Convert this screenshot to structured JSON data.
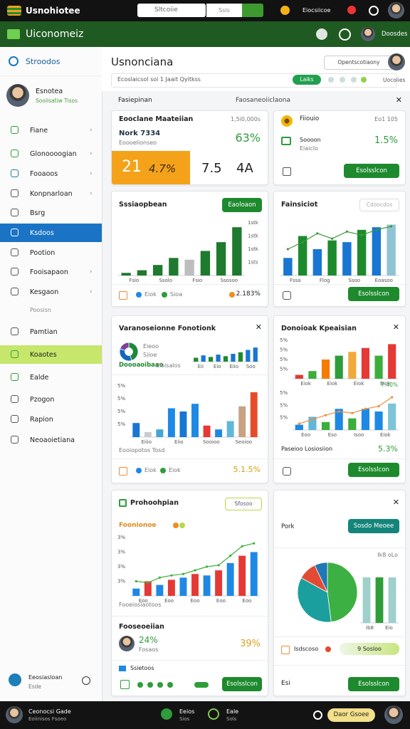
{
  "topbar": {
    "brand": "Usnohiotee",
    "search": "Sltcoiie",
    "search_option": "Ssis",
    "user": "Eiocsiicoe"
  },
  "navbar": {
    "title": "Uiconomeiz",
    "user": "Doosdes"
  },
  "sidebar": {
    "section": "Stroodos",
    "profile": {
      "name": "Esnotea",
      "role": "Sooiisatiw Tisos"
    },
    "items": [
      "Fiane",
      "Glonoooogian",
      "Fooaoos",
      "Konpnarloan",
      "Bsrg",
      "Ksdoos",
      "Pootion",
      "Fooisapaon",
      "Kesgaon",
      "Poosisn",
      "Pamtian",
      "Koaotes",
      "Ealde",
      "Pzogon",
      "Rapion",
      "Neoaoietiana"
    ],
    "footer": {
      "name": "Eeosiasloan",
      "sub": "Esde"
    }
  },
  "header": {
    "title": "Usnonciana",
    "button": "Opentscotiaony",
    "filter": "Ecoslaicsol soi 1 Jaait Qyitkss",
    "pill": "Laiks",
    "more": "Uocoiies"
  },
  "section": {
    "left": "Fasiepinan",
    "right": "Faosaneoiiclaona"
  },
  "cards": [
    {
      "title": "Eooclane Maateiian",
      "meta": "1,5i0,000s",
      "label": "Nork 7334",
      "sub": "Eoooelionseo",
      "value": "63%",
      "tiles": [
        "21",
        "4.7%",
        "7.5",
        "4A"
      ]
    },
    {
      "title": "Fiiouio",
      "meta": "Eo1 105",
      "value": "1.5%",
      "label": "Soooon",
      "sub": "Eiaiclo",
      "button": "Esolsslcon"
    },
    {
      "title": "Sssiaopbean",
      "button": "Eaoloaon",
      "chart": {
        "type": "bar",
        "ylim": [
          0,
          60
        ],
        "values": [
          3,
          6,
          12,
          20,
          18,
          28,
          38,
          55
        ],
        "colors": [
          "#1e7a2e",
          "#1e7a2e",
          "#1e7a2e",
          "#1e7a2e",
          "#bdbdbd",
          "#1e7a2e",
          "#1e7a2e",
          "#1e7a2e"
        ],
        "xlabels": [
          "Fsio",
          "Ssolo",
          "Fsio",
          "Ssosoo"
        ],
        "ylabels": [
          "1stk",
          "1stk",
          "1stk",
          "1sts"
        ],
        "ylabel_position": "right"
      },
      "legend": [
        "Eiok",
        "Sioa"
      ],
      "value": "2.183%"
    },
    {
      "title": "Fainsiciot",
      "button": "Cdoocdos",
      "chart": {
        "type": "bar",
        "ylim": [
          0,
          60
        ],
        "values": [
          20,
          45,
          30,
          40,
          38,
          52,
          55,
          58
        ],
        "colors": [
          "#1976d2",
          "#1e8a2e",
          "#1976d2",
          "#1e8a2e",
          "#1976d2",
          "#1e8a2e",
          "#1976d2",
          "#90c4d4"
        ],
        "line": [
          30,
          38,
          48,
          42,
          50,
          46,
          52,
          56
        ],
        "line_color": "#3a9a3a",
        "xlabels": [
          "Fssa",
          "Flog",
          "Ssoo",
          "Eoasoo"
        ]
      },
      "action": "Esolsslcon"
    },
    {
      "title": "Varanoseionne Fonotionk",
      "pie": {
        "type": "pie",
        "values": [
          45,
          35,
          20
        ],
        "colors": [
          "#1b8a3a",
          "#1565c0",
          "#7b3fa0"
        ],
        "hole": true
      },
      "pie_labels": [
        "Eieoo",
        "Siioe"
      ],
      "mini": {
        "type": "bar",
        "ylim": [
          0,
          20
        ],
        "values": [
          5,
          8,
          6,
          9,
          7,
          10,
          12,
          15,
          18
        ],
        "colors": [
          "#1e8a2e",
          "#1976d2",
          "#1e8a2e",
          "#1976d2",
          "#1e8a2e",
          "#1976d2",
          "#1e8a2e",
          "#1976d2",
          "#1976d2"
        ],
        "xlabels": [
          "Eii",
          "Eio",
          "Eiio",
          "Soo"
        ]
      },
      "highlight": "Doooaoibaao",
      "highlight_sub": "Eioisalos",
      "chart": {
        "type": "bar",
        "ylim": [
          0,
          80
        ],
        "values": [
          22,
          8,
          12,
          45,
          40,
          52,
          18,
          12,
          25,
          48,
          70
        ],
        "colors": [
          "#1976d2",
          "#c9ccd0",
          "#42a5d5",
          "#1e88e5",
          "#1976d2",
          "#1e88e5",
          "#e53935",
          "#1e88e5",
          "#5fb8d8",
          "#c9a183",
          "#e74c2a"
        ],
        "ylabels": [
          "5%",
          "5%",
          "5%",
          "5%"
        ],
        "xlabels": [
          "Eiiio",
          "Eiio",
          "Sooioo",
          "Seoioo"
        ]
      },
      "caption": "Eooiopotos Tosd",
      "legend": [
        "Eiok",
        "Eiok"
      ],
      "value": "5.1.5%"
    },
    {
      "title": "Donoioak Kpeaisian",
      "chart": {
        "type": "bar",
        "ylim": [
          0,
          50
        ],
        "values": [
          5,
          10,
          25,
          30,
          35,
          40,
          30,
          45
        ],
        "colors": [
          "#e53935",
          "#3cae3c",
          "#f57c00",
          "#2e9d3a",
          "#f2a93b",
          "#e53935",
          "#3cae3c",
          "#e53935"
        ],
        "ylabels": [
          "5%",
          "5%",
          "5%",
          "5%"
        ],
        "xlabels": [
          "Eiok",
          "Eiok",
          "Eiok",
          "Eiok"
        ]
      },
      "chart2": {
        "type": "bar",
        "ylim": [
          0,
          70
        ],
        "values": [
          10,
          25,
          15,
          40,
          22,
          40,
          35,
          50
        ],
        "colors": [
          "#1e88e5",
          "#5fb8d8",
          "#3cae3c",
          "#1e88e5",
          "#3cae3c",
          "#1e88e5",
          "#1e88e5",
          "#7ec4d8"
        ],
        "line": [
          12,
          20,
          28,
          35,
          32,
          40,
          45,
          62
        ],
        "line_color": "#f08c3c",
        "ylabels": [
          "5%",
          "5%",
          "5%"
        ],
        "xlabels": [
          "Eoo",
          "Eso",
          "Isoo",
          "Eiok"
        ]
      },
      "note": "7.40%",
      "caption": "Paseioo Losiosiion",
      "value": "5.3%",
      "button": "Esolsslcon"
    },
    {
      "title": "Prohoohpian",
      "button": "Sfosoo",
      "subtitle": "Foonionoe",
      "chart": {
        "type": "bar",
        "ylim": [
          0,
          80
        ],
        "values": [
          10,
          20,
          15,
          22,
          25,
          30,
          28,
          35,
          45,
          55,
          60
        ],
        "colors": [
          "#1e88e5",
          "#e53935",
          "#1e88e5",
          "#e53935",
          "#1e88e5",
          "#e53935",
          "#1e88e5",
          "#e53935",
          "#1e88e5",
          "#e53935",
          "#1e88e5"
        ],
        "line": [
          20,
          18,
          25,
          28,
          30,
          35,
          40,
          42,
          55,
          68,
          72
        ],
        "line_color": "#3cae3c",
        "ylabels": [
          "3%",
          "3%",
          "3%",
          "3%"
        ],
        "xlabels": [
          "Eoo",
          "Eoo",
          "Eoo",
          "Eoo",
          "Eoo"
        ]
      },
      "caption": "Fooeiosiaotoos",
      "section": "Fooseoeiian",
      "value": "24%",
      "value_sub": "Fosaos",
      "value2": "39%",
      "footer": "Ssietoos",
      "action": "Esolsslcon"
    },
    {
      "title": "Pork",
      "button": "Sosdo Meoee",
      "pie": {
        "type": "pie",
        "values": [
          48,
          35,
          10,
          7
        ],
        "colors": [
          "#3cb043",
          "#1a9e9e",
          "#e34a33",
          "#1f77b4"
        ]
      },
      "chart": {
        "type": "bar",
        "ylim": [
          0,
          100
        ],
        "values": [
          80,
          80,
          80
        ],
        "colors": [
          "#9fd0cc",
          "#2e9d3a",
          "#9fd0cc"
        ],
        "xlabels": [
          "Ib8",
          "Eio"
        ]
      },
      "note": "Ik8 oLo",
      "footer": "Isdscoso",
      "pill": "9 Sosloo",
      "footer2": "Esi",
      "action": "Esolsslcon"
    }
  ],
  "bottombar": {
    "name": "Ceonocsi Gade",
    "sub": "Eoiinisos Fsoeo",
    "tab1": "Eeios",
    "tab1_sub": "Sios",
    "tab2": "Eale",
    "tab2_sub": "Sols",
    "button": "Daor Gsoee"
  }
}
